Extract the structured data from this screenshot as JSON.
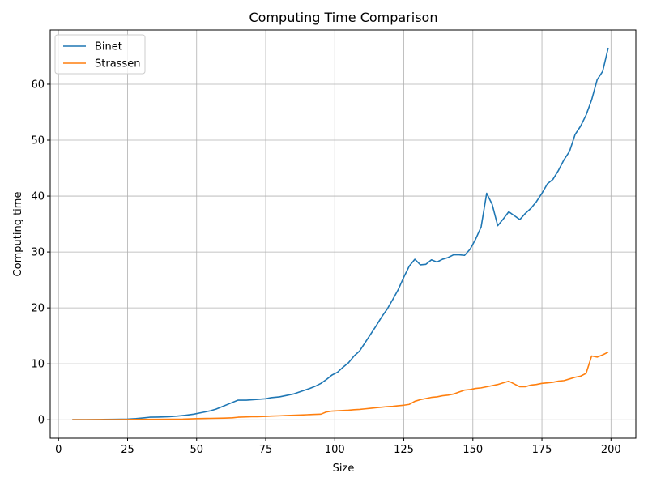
{
  "chart_data": {
    "type": "line",
    "title": "Computing Time Comparison",
    "xlabel": "Size",
    "ylabel": "Computing time",
    "xlim": [
      -3,
      209
    ],
    "ylim": [
      -3.3,
      69.7
    ],
    "xticks": [
      0,
      25,
      50,
      75,
      100,
      125,
      150,
      175,
      200
    ],
    "yticks": [
      0,
      10,
      20,
      30,
      40,
      50,
      60
    ],
    "grid": true,
    "legend_position": "upper-left",
    "series": [
      {
        "name": "Binet",
        "color": "#1f77b4",
        "x": [
          5,
          10,
          15,
          20,
          25,
          28,
          30,
          33,
          36,
          40,
          43,
          46,
          49,
          52,
          55,
          57,
          60,
          62,
          65,
          68,
          71,
          75,
          77,
          80,
          82,
          85,
          88,
          91,
          93,
          95,
          97,
          99,
          101,
          103,
          105,
          107,
          109,
          111,
          113,
          115,
          117,
          119,
          121,
          123,
          125,
          127,
          129,
          131,
          133,
          135,
          137,
          139,
          141,
          143,
          145,
          147,
          149,
          151,
          153,
          155,
          157,
          159,
          161,
          163,
          165,
          167,
          169,
          171,
          173,
          175,
          177,
          179,
          181,
          183,
          185,
          187,
          189,
          191,
          193,
          195,
          197,
          199
        ],
        "values": [
          0.02,
          0.03,
          0.05,
          0.08,
          0.12,
          0.2,
          0.3,
          0.45,
          0.48,
          0.55,
          0.65,
          0.8,
          1.0,
          1.3,
          1.6,
          1.9,
          2.5,
          2.9,
          3.5,
          3.5,
          3.6,
          3.75,
          3.95,
          4.1,
          4.3,
          4.6,
          5.1,
          5.6,
          6.0,
          6.5,
          7.2,
          8.0,
          8.5,
          9.4,
          10.2,
          11.4,
          12.3,
          13.8,
          15.3,
          16.8,
          18.4,
          19.8,
          21.5,
          23.3,
          25.5,
          27.5,
          28.7,
          27.7,
          27.8,
          28.6,
          28.2,
          28.7,
          29.0,
          29.5,
          29.5,
          29.4,
          30.5,
          32.3,
          34.5,
          40.5,
          38.5,
          34.7,
          35.9,
          37.2,
          36.5,
          35.8,
          36.9,
          37.8,
          39.0,
          40.5,
          42.2,
          43.0,
          44.6,
          46.5,
          48.0,
          51.0,
          52.5,
          54.5,
          57.2,
          60.8,
          62.3,
          66.5
        ]
      },
      {
        "name": "Strassen",
        "color": "#ff7f0e",
        "x": [
          5,
          10,
          15,
          20,
          25,
          30,
          35,
          40,
          45,
          50,
          55,
          60,
          63,
          65,
          68,
          70,
          72,
          75,
          77,
          80,
          82,
          85,
          88,
          90,
          92,
          95,
          97,
          99,
          101,
          103,
          105,
          107,
          109,
          111,
          113,
          115,
          117,
          119,
          121,
          123,
          125,
          127,
          129,
          131,
          133,
          135,
          137,
          139,
          141,
          143,
          145,
          147,
          149,
          151,
          153,
          155,
          157,
          159,
          161,
          163,
          165,
          167,
          169,
          171,
          173,
          175,
          177,
          179,
          181,
          183,
          185,
          187,
          189,
          191,
          193,
          195,
          197,
          199
        ],
        "values": [
          0.0,
          0.01,
          0.02,
          0.03,
          0.05,
          0.07,
          0.08,
          0.1,
          0.12,
          0.2,
          0.25,
          0.3,
          0.35,
          0.45,
          0.5,
          0.55,
          0.55,
          0.6,
          0.65,
          0.7,
          0.75,
          0.8,
          0.85,
          0.9,
          0.95,
          1.0,
          1.4,
          1.55,
          1.6,
          1.65,
          1.7,
          1.8,
          1.85,
          1.95,
          2.05,
          2.15,
          2.25,
          2.35,
          2.4,
          2.5,
          2.6,
          2.75,
          3.3,
          3.6,
          3.8,
          4.0,
          4.1,
          4.3,
          4.4,
          4.6,
          4.95,
          5.3,
          5.4,
          5.6,
          5.7,
          5.9,
          6.1,
          6.3,
          6.6,
          6.9,
          6.4,
          5.9,
          5.9,
          6.2,
          6.3,
          6.5,
          6.6,
          6.7,
          6.9,
          7.0,
          7.3,
          7.6,
          7.8,
          8.3,
          11.4,
          11.2,
          11.6,
          12.1
        ]
      }
    ]
  }
}
